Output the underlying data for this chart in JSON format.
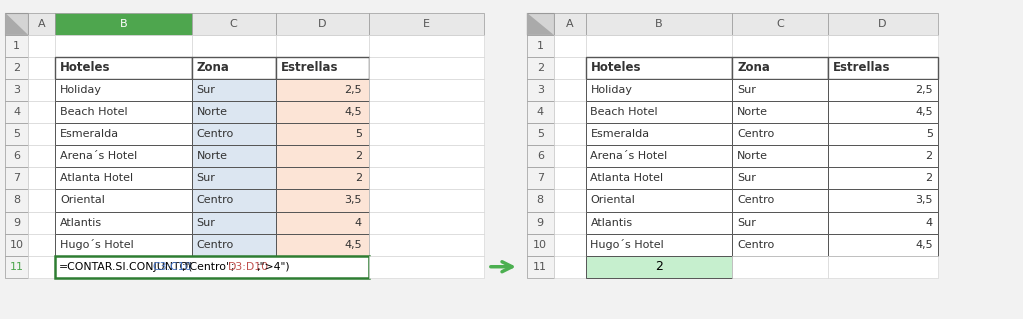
{
  "hotels": [
    "Holiday",
    "Beach Hotel",
    "Esmeralda",
    "Arena´s Hotel",
    "Atlanta Hotel",
    "Oriental",
    "Atlantis",
    "Hugo´s Hotel"
  ],
  "zones": [
    "Sur",
    "Norte",
    "Centro",
    "Norte",
    "Sur",
    "Centro",
    "Sur",
    "Centro"
  ],
  "stars": [
    "2,5",
    "4,5",
    "5",
    "2",
    "2",
    "3,5",
    "4",
    "4,5"
  ],
  "headers": [
    "Hoteles",
    "Zona",
    "Estrellas"
  ],
  "formula_parts": [
    {
      "text": "=CONTAR.SI.CONJUNTO(",
      "color": "#000000"
    },
    {
      "text": "C3:C10",
      "color": "#4472c4"
    },
    {
      "text": ";\"Centro\";",
      "color": "#000000"
    },
    {
      "text": "D3:D10",
      "color": "#c0504d"
    },
    {
      "text": ";\">4\")",
      "color": "#000000"
    }
  ],
  "result": "2",
  "bg_color": "#f2f2f2",
  "cell_white": "#ffffff",
  "col_C_blue": "#dce6f1",
  "col_D_red": "#fce4d6",
  "result_green": "#c6efce",
  "col_header_bg": "#e8e8e8",
  "row_header_bg": "#f2f2f2",
  "selected_col_header_bg": "#4ea64e",
  "selected_col_header_color": "#ffffff",
  "formula_cell_border": "#2e7d32",
  "arrow_color": "#4caf50",
  "grid_color": "#b0b0b0",
  "dark_border": "#555555",
  "formula_row_num_color": "#4ea64e",
  "formula_row_num_bg": "#f2f2f2"
}
